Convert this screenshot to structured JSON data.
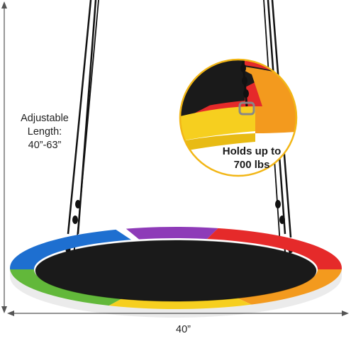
{
  "labels": {
    "adjustable_line1": "Adjustable",
    "adjustable_line2": "Length:",
    "adjustable_line3": "40”-63”",
    "width": "40”",
    "capacity_line1": "Holds up to",
    "capacity_line2": "700 lbs"
  },
  "colors": {
    "seat": "#1a1a1a",
    "ring_blue": "#1e6fd0",
    "ring_purple": "#8e3bb8",
    "ring_red": "#e52a2a",
    "ring_orange": "#f39a1e",
    "ring_yellow": "#f6cf1f",
    "ring_green": "#62b83a",
    "callout_border": "#f2b616",
    "rope": "#111111",
    "dimension_line": "#555555"
  }
}
